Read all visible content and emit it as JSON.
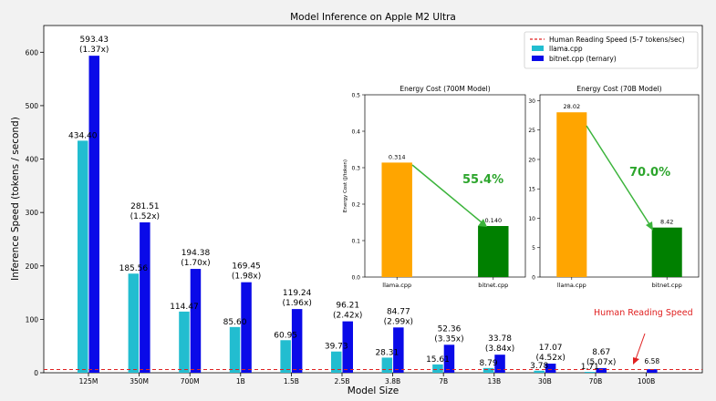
{
  "chart_data": [
    {
      "type": "bar",
      "title": "Model Inference on Apple M2 Ultra",
      "xlabel": "Model Size",
      "ylabel": "Inference Speed (tokens / second)",
      "ylim": [
        0,
        650
      ],
      "yticks": [
        0,
        100,
        200,
        300,
        400,
        500,
        600
      ],
      "categories": [
        "125M",
        "350M",
        "700M",
        "1B",
        "1.5B",
        "2.5B",
        "3.8B",
        "7B",
        "13B",
        "30B",
        "70B",
        "100B"
      ],
      "series": [
        {
          "name": "llama.cpp",
          "color": "#22bdd0",
          "values": [
            434.4,
            185.56,
            114.47,
            85.6,
            60.95,
            39.73,
            28.31,
            15.61,
            8.79,
            3.78,
            1.71,
            null
          ],
          "labels": [
            "434.40",
            "185.56",
            "114.47",
            "85.60",
            "60.95",
            "39.73",
            "28.31",
            "15.61",
            "8.79",
            "3.78",
            "1.71",
            ""
          ]
        },
        {
          "name": "bitnet.cpp (ternary)",
          "color": "#0a0ae8",
          "values": [
            593.43,
            281.51,
            194.38,
            169.45,
            119.24,
            96.21,
            84.77,
            52.36,
            33.78,
            17.07,
            8.67,
            6.58
          ],
          "labels": [
            "593.43",
            "281.51",
            "194.38",
            "169.45",
            "119.24",
            "96.21",
            "84.77",
            "52.36",
            "33.78",
            "17.07",
            "8.67",
            "6.58"
          ],
          "speedups": [
            "(1.37x)",
            "(1.52x)",
            "(1.70x)",
            "(1.98x)",
            "(1.96x)",
            "(2.42x)",
            "(2.99x)",
            "(3.35x)",
            "(3.84x)",
            "(4.52x)",
            "(5.07x)",
            ""
          ]
        }
      ],
      "reference_line": {
        "label": "Human Reading Speed (5-7 tokens/sec)",
        "value": 6,
        "color": "#e02020"
      },
      "annotation": {
        "text": "Human Reading Speed",
        "color": "#e02020"
      },
      "legend": "top-right",
      "grid": false
    },
    {
      "type": "bar",
      "title": "Energy Cost (700M Model)",
      "ylabel": "Energy Cost (J/token)",
      "categories": [
        "llama.cpp",
        "bitnet.cpp"
      ],
      "values": [
        0.314,
        0.14
      ],
      "value_labels": [
        "0.314",
        "0.140"
      ],
      "colors": [
        "#ffa500",
        "#008000"
      ],
      "ylim": [
        0,
        0.5
      ],
      "yticks": [
        "0.0",
        "0.1",
        "0.2",
        "0.3",
        "0.4",
        "0.5"
      ],
      "reduction": "55.4%"
    },
    {
      "type": "bar",
      "title": "Energy Cost (70B Model)",
      "categories": [
        "llama.cpp",
        "bitnet.cpp"
      ],
      "values": [
        28.02,
        8.42
      ],
      "value_labels": [
        "28.02",
        "8.42"
      ],
      "colors": [
        "#ffa500",
        "#008000"
      ],
      "ylim": [
        0,
        31
      ],
      "yticks": [
        "0",
        "5",
        "10",
        "15",
        "20",
        "25",
        "30"
      ],
      "reduction": "70.0%"
    }
  ]
}
